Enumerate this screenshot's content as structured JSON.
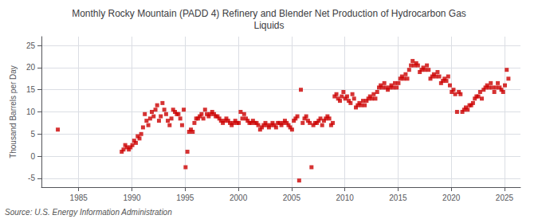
{
  "chart_data": {
    "type": "scatter",
    "title": "Monthly Rocky Mountain (PADD 4) Refinery and Blender Net Production of Hydrocarbon Gas\nLiquids",
    "ylabel": "Thousand Barrels per Day",
    "source": "Source: U.S. Energy Information Administration",
    "color": "#cc0000",
    "marker": "square",
    "grid": true,
    "xlim": [
      1981.5,
      2026.5
    ],
    "ylim": [
      -7,
      27
    ],
    "yticks": [
      -5,
      0,
      5,
      10,
      15,
      20,
      25
    ],
    "xticks": [
      1985,
      1990,
      1995,
      2000,
      2005,
      2010,
      2015,
      2020,
      2025
    ],
    "x": [
      1983.04,
      1989.04,
      1989.21,
      1989.37,
      1989.54,
      1989.71,
      1989.87,
      1990.04,
      1990.21,
      1990.37,
      1990.54,
      1990.71,
      1990.87,
      1991.04,
      1991.21,
      1991.37,
      1991.54,
      1991.71,
      1991.87,
      1992.04,
      1992.21,
      1992.37,
      1992.54,
      1992.71,
      1992.87,
      1993.04,
      1993.21,
      1993.37,
      1993.54,
      1993.71,
      1993.87,
      1994.04,
      1994.21,
      1994.37,
      1994.54,
      1994.71,
      1994.87,
      1995.04,
      1995.21,
      1995.37,
      1995.54,
      1995.71,
      1995.87,
      1996.04,
      1996.21,
      1996.37,
      1996.54,
      1996.71,
      1996.87,
      1997.04,
      1997.21,
      1997.37,
      1997.54,
      1997.71,
      1997.87,
      1998.04,
      1998.21,
      1998.37,
      1998.54,
      1998.71,
      1998.87,
      1999.04,
      1999.21,
      1999.37,
      1999.54,
      1999.71,
      1999.87,
      2000.04,
      2000.21,
      2000.37,
      2000.54,
      2000.71,
      2000.87,
      2001.04,
      2001.21,
      2001.37,
      2001.54,
      2001.71,
      2001.87,
      2002.04,
      2002.21,
      2002.37,
      2002.54,
      2002.71,
      2002.87,
      2003.04,
      2003.21,
      2003.37,
      2003.54,
      2003.71,
      2003.87,
      2004.04,
      2004.21,
      2004.37,
      2004.54,
      2004.71,
      2004.87,
      2005.04,
      2005.21,
      2005.37,
      2005.54,
      2005.71,
      2005.87,
      2006.04,
      2006.21,
      2006.37,
      2006.54,
      2006.71,
      2006.87,
      2007.04,
      2007.21,
      2007.37,
      2007.54,
      2007.71,
      2007.87,
      2008.04,
      2008.21,
      2008.37,
      2008.54,
      2008.71,
      2008.87,
      2009.04,
      2009.21,
      2009.37,
      2009.54,
      2009.71,
      2009.87,
      2010.04,
      2010.21,
      2010.37,
      2010.54,
      2010.71,
      2010.87,
      2011.04,
      2011.21,
      2011.37,
      2011.54,
      2011.71,
      2011.87,
      2012.04,
      2012.21,
      2012.37,
      2012.54,
      2012.71,
      2012.87,
      2013.04,
      2013.21,
      2013.37,
      2013.54,
      2013.71,
      2013.87,
      2014.04,
      2014.21,
      2014.37,
      2014.54,
      2014.71,
      2014.87,
      2015.04,
      2015.21,
      2015.37,
      2015.54,
      2015.71,
      2015.87,
      2016.04,
      2016.21,
      2016.37,
      2016.54,
      2016.71,
      2016.87,
      2017.04,
      2017.21,
      2017.37,
      2017.54,
      2017.71,
      2017.87,
      2018.04,
      2018.21,
      2018.37,
      2018.54,
      2018.71,
      2018.87,
      2019.04,
      2019.21,
      2019.37,
      2019.54,
      2019.71,
      2019.87,
      2020.04,
      2020.21,
      2020.37,
      2020.54,
      2020.71,
      2020.87,
      2021.04,
      2021.21,
      2021.37,
      2021.54,
      2021.71,
      2021.87,
      2022.04,
      2022.21,
      2022.37,
      2022.54,
      2022.71,
      2022.87,
      2023.04,
      2023.21,
      2023.37,
      2023.54,
      2023.71,
      2023.87,
      2024.04,
      2024.21,
      2024.37,
      2024.54,
      2024.71,
      2024.87,
      2025.04,
      2025.21,
      2025.37
    ],
    "values": [
      6.0,
      1.0,
      1.5,
      2.5,
      2.0,
      1.5,
      2.0,
      2.5,
      3.5,
      3.0,
      4.5,
      4.0,
      5.0,
      6.5,
      9.5,
      8.0,
      7.0,
      8.5,
      10.0,
      9.0,
      10.5,
      11.5,
      8.0,
      9.0,
      12.0,
      10.5,
      9.5,
      8.0,
      7.0,
      8.5,
      10.5,
      10.0,
      9.5,
      9.5,
      8.5,
      7.0,
      10.5,
      -2.5,
      1.0,
      5.5,
      6.0,
      5.5,
      7.5,
      8.5,
      8.5,
      9.0,
      9.5,
      8.5,
      10.5,
      9.5,
      9.0,
      9.5,
      10.0,
      9.5,
      9.0,
      9.0,
      8.5,
      8.0,
      7.5,
      8.0,
      8.5,
      8.0,
      7.5,
      7.0,
      7.5,
      8.0,
      7.5,
      7.5,
      10.0,
      8.5,
      9.5,
      8.5,
      8.0,
      7.5,
      7.5,
      8.0,
      7.5,
      7.5,
      7.0,
      6.0,
      6.5,
      7.0,
      7.5,
      7.0,
      6.5,
      7.0,
      7.5,
      7.0,
      6.5,
      7.5,
      7.5,
      7.0,
      7.5,
      8.0,
      7.5,
      7.0,
      6.5,
      6.0,
      8.0,
      8.5,
      9.0,
      -5.5,
      15.0,
      7.5,
      8.5,
      9.0,
      8.0,
      7.5,
      -2.5,
      7.0,
      7.5,
      7.5,
      8.0,
      8.5,
      7.0,
      8.0,
      8.5,
      9.0,
      8.5,
      7.0,
      7.5,
      13.5,
      14.0,
      13.0,
      12.5,
      13.5,
      14.5,
      13.0,
      13.5,
      12.5,
      12.0,
      14.0,
      13.0,
      11.0,
      11.5,
      12.0,
      11.5,
      12.5,
      11.5,
      12.5,
      13.0,
      13.5,
      13.0,
      14.0,
      13.0,
      14.5,
      15.5,
      16.0,
      15.5,
      16.5,
      15.5,
      15.0,
      15.5,
      16.0,
      15.5,
      16.5,
      15.5,
      16.5,
      17.5,
      18.0,
      17.5,
      18.5,
      17.5,
      19.5,
      20.5,
      21.5,
      20.5,
      21.0,
      20.5,
      19.0,
      19.5,
      20.0,
      19.5,
      20.5,
      19.5,
      17.5,
      18.0,
      18.5,
      18.0,
      19.0,
      18.0,
      16.5,
      17.0,
      17.5,
      17.0,
      18.0,
      16.0,
      14.5,
      15.0,
      14.0,
      10.0,
      14.5,
      14.0,
      10.0,
      10.5,
      11.0,
      10.5,
      11.5,
      11.5,
      12.0,
      13.0,
      13.5,
      13.5,
      14.5,
      13.0,
      15.0,
      15.5,
      16.0,
      15.5,
      16.5,
      15.5,
      14.5,
      15.5,
      16.5,
      15.5,
      15.0,
      14.5,
      16.0,
      19.5,
      17.5
    ]
  }
}
